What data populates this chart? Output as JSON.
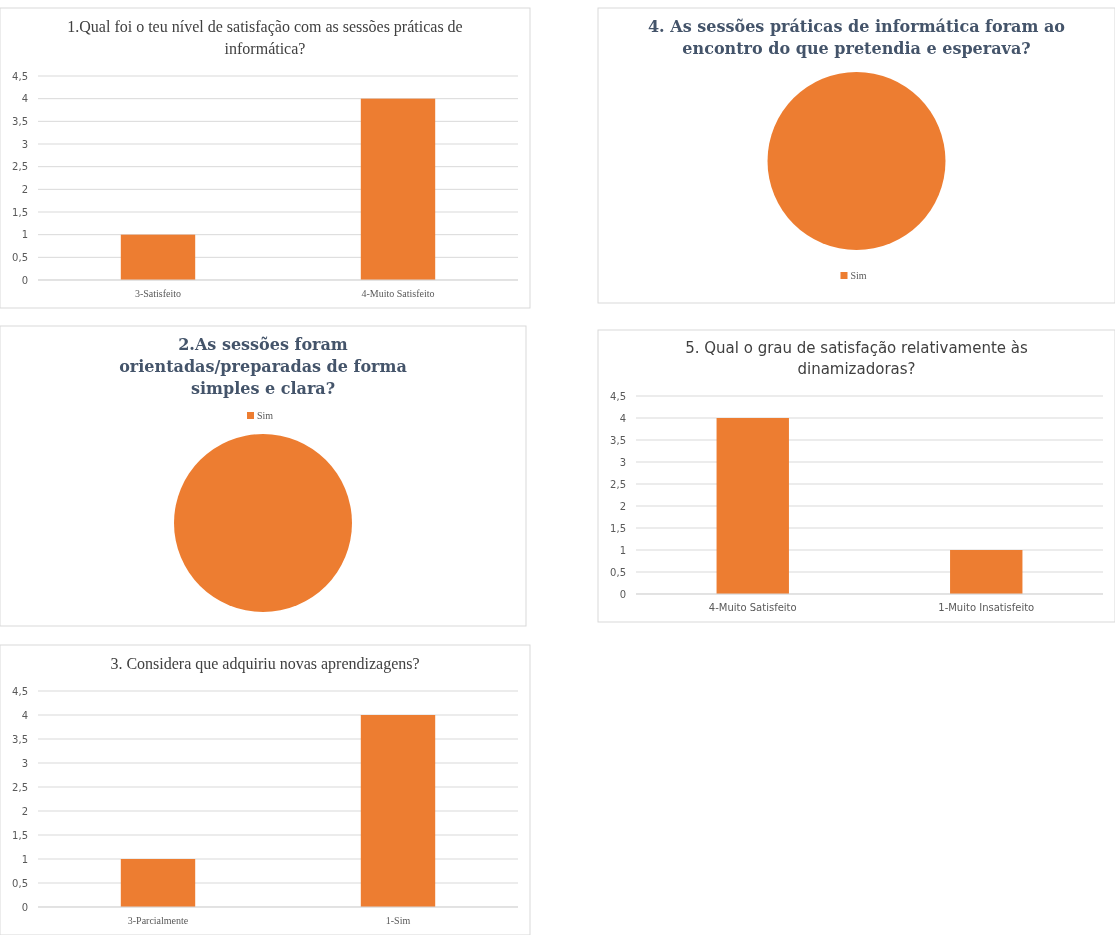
{
  "chart_data": [
    {
      "type": "bar",
      "title": "1.Qual foi o teu nível de satisfação com as sessões práticas de informática?",
      "categories": [
        "3-Satisfeito",
        "4-Muito Satisfeito"
      ],
      "values": [
        1,
        4
      ],
      "color": "#ed7d31",
      "ylim": [
        0,
        4.5
      ],
      "yticks": [
        0,
        {
          "value": 0.5,
          "label": "0,5"
        },
        1,
        {
          "value": 1.5,
          "label": "1,5"
        },
        2,
        {
          "value": 2.5,
          "label": "2,5"
        },
        3,
        {
          "value": 3.5,
          "label": "3,5"
        },
        4,
        {
          "value": 4.5,
          "label": "4,5"
        }
      ],
      "grid": "y"
    },
    {
      "type": "pie",
      "title": "4. As sessões práticas de informática foram ao encontro do que pretendia e esperava?",
      "categories": [
        "Sim"
      ],
      "values": [
        100
      ],
      "colors": [
        "#ed7d31"
      ],
      "legend": "bottom"
    },
    {
      "type": "pie",
      "title": "2.As sessões foram orientadas/preparadas de forma simples e clara?",
      "categories": [
        "Sim"
      ],
      "values": [
        100
      ],
      "colors": [
        "#ed7d31"
      ],
      "legend": "top"
    },
    {
      "type": "bar",
      "title": "5. Qual o grau de satisfação relativamente às dinamizadoras?",
      "categories": [
        "4-Muito Satisfeito",
        "1-Muito Insatisfeito"
      ],
      "values": [
        4,
        1
      ],
      "color": "#ed7d31",
      "ylim": [
        0,
        4.5
      ],
      "yticks": [
        0,
        {
          "value": 0.5,
          "label": "0,5"
        },
        1,
        {
          "value": 1.5,
          "label": "1,5"
        },
        2,
        {
          "value": 2.5,
          "label": "2,5"
        },
        3,
        {
          "value": 3.5,
          "label": "3,5"
        },
        4,
        {
          "value": 4.5,
          "label": "4,5"
        }
      ],
      "grid": "y"
    },
    {
      "type": "bar",
      "title": "3. Considera que adquiriu novas aprendizagens?",
      "categories": [
        "3-Parcialmente",
        "1-Sim"
      ],
      "values": [
        1,
        4
      ],
      "color": "#ed7d31",
      "ylim": [
        0,
        4.5
      ],
      "yticks": [
        0,
        {
          "value": 0.5,
          "label": "0,5"
        },
        1,
        {
          "value": 1.5,
          "label": "1,5"
        },
        2,
        {
          "value": 2.5,
          "label": "2,5"
        },
        3,
        {
          "value": 3.5,
          "label": "3,5"
        },
        4,
        {
          "value": 4.5,
          "label": "4,5"
        }
      ],
      "grid": "y"
    }
  ]
}
